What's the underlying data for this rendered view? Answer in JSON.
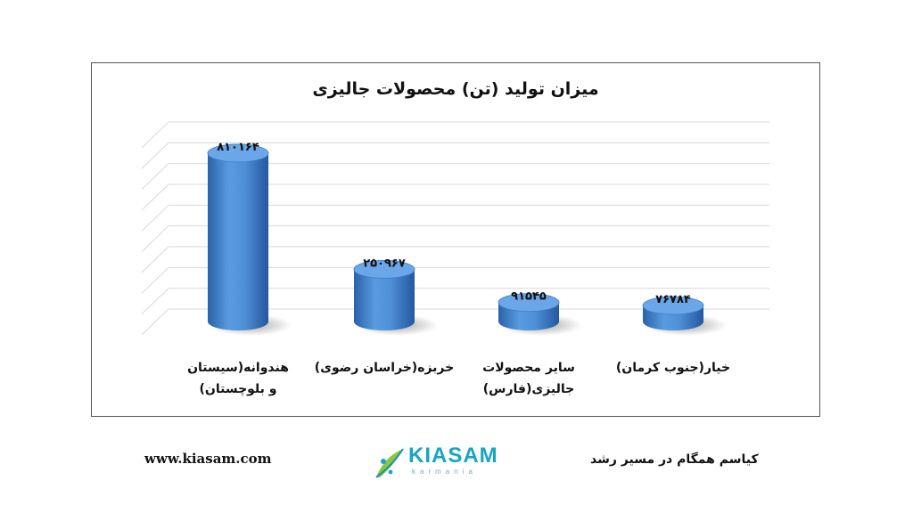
{
  "chart_data": {
    "type": "bar",
    "title": "میزان تولید (تن) محصولات جالیزی",
    "categories": [
      "هندوانه(سیستان و بلوچستان)",
      "خربزه(خراسان رضوی)",
      "سایر محصولات جالیزی(فارس)",
      "خیار(جنوب کرمان)"
    ],
    "values": [
      810164,
      250967,
      91545,
      76784
    ],
    "data_labels": [
      "۸۱۰۱۶۴",
      "۲۵۰۹۶۷",
      "۹۱۵۴۵",
      "۷۶۷۸۴"
    ],
    "ylim": [
      0,
      900000
    ],
    "grid": true,
    "style": "3d-cylinder",
    "colors": {
      "bar": "#4f8fd6",
      "bar_dark": "#2a62a8",
      "bar_top": "#6aa6e8"
    }
  },
  "footer": {
    "site_url": "www.kiasam.com",
    "slogan": "کیاسم همگام در مسیر رشد",
    "logo_name": "KIASAM",
    "logo_sub": "karmania",
    "logo_icon": "leaf-icon"
  }
}
